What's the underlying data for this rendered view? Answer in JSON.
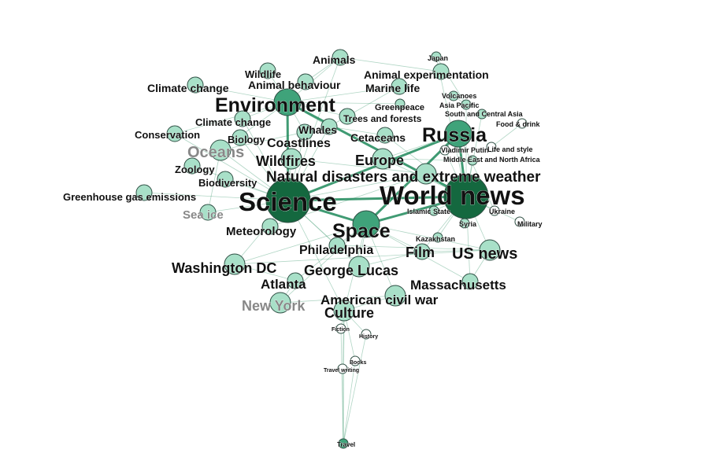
{
  "graph": {
    "colors": {
      "edge": "#1f8a5a",
      "node_light": "#a8e0c8",
      "node_mid": "#3fa37a",
      "node_dark": "#14683f",
      "node_stroke": "#2f4f44",
      "label": "#111111",
      "label_faded": "#888888"
    },
    "nodes": [
      {
        "id": "worldnews",
        "label": "World news",
        "size": "xl",
        "shade": "dark"
      },
      {
        "id": "science",
        "label": "Science",
        "size": "xl",
        "shade": "dark"
      },
      {
        "id": "environment",
        "label": "Environment",
        "size": "l",
        "shade": "mid"
      },
      {
        "id": "russia",
        "label": "Russia",
        "size": "l",
        "shade": "mid"
      },
      {
        "id": "space",
        "label": "Space",
        "size": "l",
        "shade": "mid"
      },
      {
        "id": "usnews",
        "label": "US news",
        "size": "m",
        "shade": "light"
      },
      {
        "id": "natdis",
        "label": "Natural disasters and extreme weather",
        "size": "m",
        "shade": "light"
      },
      {
        "id": "oceans",
        "label": "Oceans",
        "size": "m",
        "shade": "light"
      },
      {
        "id": "washington",
        "label": "Washington DC",
        "size": "m",
        "shade": "light"
      },
      {
        "id": "europe",
        "label": "Europe",
        "size": "m",
        "shade": "light"
      },
      {
        "id": "wildfires",
        "label": "Wildfires",
        "size": "m",
        "shade": "light"
      },
      {
        "id": "coastlines",
        "label": "Coastlines",
        "size": "s",
        "shade": "light"
      },
      {
        "id": "philadelphia",
        "label": "Philadelphia",
        "size": "s",
        "shade": "light"
      },
      {
        "id": "georgelucas",
        "label": "George Lucas",
        "size": "m",
        "shade": "light"
      },
      {
        "id": "film",
        "label": "Film",
        "size": "s",
        "shade": "light"
      },
      {
        "id": "atlanta",
        "label": "Atlanta",
        "size": "s",
        "shade": "light"
      },
      {
        "id": "massachusetts",
        "label": "Massachusetts",
        "size": "s",
        "shade": "light"
      },
      {
        "id": "newyork",
        "label": "New York",
        "size": "m",
        "shade": "light"
      },
      {
        "id": "acw",
        "label": "American civil war",
        "size": "m",
        "shade": "light"
      },
      {
        "id": "culture",
        "label": "Culture",
        "size": "m",
        "shade": "light"
      },
      {
        "id": "meteorology",
        "label": "Meteorology",
        "size": "s",
        "shade": "light"
      },
      {
        "id": "seaice",
        "label": "Sea ice",
        "size": "s",
        "shade": "light"
      },
      {
        "id": "ghg",
        "label": "Greenhouse gas emissions",
        "size": "s",
        "shade": "light"
      },
      {
        "id": "biodiversity",
        "label": "Biodiversity",
        "size": "s",
        "shade": "light"
      },
      {
        "id": "zoology",
        "label": "Zoology",
        "size": "s",
        "shade": "light"
      },
      {
        "id": "conservation",
        "label": "Conservation",
        "size": "s",
        "shade": "light"
      },
      {
        "id": "biology",
        "label": "Biology",
        "size": "s",
        "shade": "light"
      },
      {
        "id": "climatechange1",
        "label": "Climate change",
        "size": "s",
        "shade": "light"
      },
      {
        "id": "climatechange2",
        "label": "Climate change",
        "size": "s",
        "shade": "light"
      },
      {
        "id": "wildlife",
        "label": "Wildlife",
        "size": "s",
        "shade": "light"
      },
      {
        "id": "animals",
        "label": "Animals",
        "size": "s",
        "shade": "light"
      },
      {
        "id": "animalbehaviour",
        "label": "Animal behaviour",
        "size": "s",
        "shade": "light"
      },
      {
        "id": "animalexp",
        "label": "Animal experimentation",
        "size": "s",
        "shade": "light"
      },
      {
        "id": "marinelife",
        "label": "Marine life",
        "size": "s",
        "shade": "light"
      },
      {
        "id": "whales",
        "label": "Whales",
        "size": "s",
        "shade": "light"
      },
      {
        "id": "cetaceans",
        "label": "Cetaceans",
        "size": "s",
        "shade": "light"
      },
      {
        "id": "trees",
        "label": "Trees and forests",
        "size": "s",
        "shade": "light"
      },
      {
        "id": "greenpeace",
        "label": "Greenpeace",
        "size": "xs",
        "shade": "light"
      },
      {
        "id": "japan",
        "label": "Japan",
        "size": "xs",
        "shade": "light"
      },
      {
        "id": "volcanoes",
        "label": "Volcanoes",
        "size": "xs",
        "shade": "light"
      },
      {
        "id": "asiapacific",
        "label": "Asia Pacific",
        "size": "xs",
        "shade": "light"
      },
      {
        "id": "southcentralasia",
        "label": "South and Central Asia",
        "size": "xs",
        "shade": "light"
      },
      {
        "id": "fooddrink",
        "label": "Food & drink",
        "size": "xs",
        "shade": "white"
      },
      {
        "id": "vladimir",
        "label": "Vladimir Putin",
        "size": "xs",
        "shade": "white"
      },
      {
        "id": "middleeast",
        "label": "Middle East and North Africa",
        "size": "xs",
        "shade": "light"
      },
      {
        "id": "lifestyle",
        "label": "Life and style",
        "size": "xs",
        "shade": "white"
      },
      {
        "id": "islamicstate",
        "label": "Islamic State",
        "size": "xs",
        "shade": "light"
      },
      {
        "id": "syria",
        "label": "Syria",
        "size": "xs",
        "shade": "light"
      },
      {
        "id": "ukraine",
        "label": "Ukraine",
        "size": "xs",
        "shade": "white"
      },
      {
        "id": "military",
        "label": "Military",
        "size": "xs",
        "shade": "white"
      },
      {
        "id": "kazakhstan",
        "label": "Kazakhstan",
        "size": "xs",
        "shade": "light"
      },
      {
        "id": "fiction",
        "label": "Fiction",
        "size": "xs",
        "shade": "white"
      },
      {
        "id": "history",
        "label": "History",
        "size": "xs",
        "shade": "white"
      },
      {
        "id": "books",
        "label": "Books",
        "size": "xs",
        "shade": "white"
      },
      {
        "id": "travelwriting",
        "label": "Travel writing",
        "size": "xs",
        "shade": "white"
      },
      {
        "id": "travel",
        "label": "Travel",
        "size": "xs",
        "shade": "mid"
      }
    ],
    "texts": [
      {
        "id": "t_worldnews",
        "text": "World news"
      },
      {
        "id": "t_science",
        "text": "Science"
      },
      {
        "id": "t_environment",
        "text": "Environment"
      },
      {
        "id": "t_russia",
        "text": "Russia"
      },
      {
        "id": "t_space",
        "text": "Space"
      },
      {
        "id": "t_usnews",
        "text": "US news"
      },
      {
        "id": "t_natdis",
        "text": "Natural disasters and extreme weather"
      },
      {
        "id": "t_oceans",
        "text": "Oceans"
      },
      {
        "id": "t_washington",
        "text": "Washington DC"
      },
      {
        "id": "t_europe",
        "text": "Europe"
      },
      {
        "id": "t_wildfires",
        "text": "Wildfires"
      },
      {
        "id": "t_coastlines",
        "text": "Coastlines"
      },
      {
        "id": "t_philadelphia",
        "text": "Philadelphia"
      },
      {
        "id": "t_georgelucas",
        "text": "George Lucas"
      },
      {
        "id": "t_film",
        "text": "Film"
      },
      {
        "id": "t_atlanta",
        "text": "Atlanta"
      },
      {
        "id": "t_massachusetts",
        "text": "Massachusetts"
      },
      {
        "id": "t_newyork",
        "text": "New York"
      },
      {
        "id": "t_acw",
        "text": "American civil war"
      },
      {
        "id": "t_culture",
        "text": "Culture"
      },
      {
        "id": "t_meteorology",
        "text": "Meteorology"
      },
      {
        "id": "t_seaice",
        "text": "Sea ice"
      },
      {
        "id": "t_ghg",
        "text": "Greenhouse gas emissions"
      },
      {
        "id": "t_biodiversity",
        "text": "Biodiversity"
      },
      {
        "id": "t_zoology",
        "text": "Zoology"
      },
      {
        "id": "t_conservation",
        "text": "Conservation"
      },
      {
        "id": "t_biology",
        "text": "Biology"
      },
      {
        "id": "t_climatechange1",
        "text": "Climate change"
      },
      {
        "id": "t_climatechange2",
        "text": "Climate change"
      },
      {
        "id": "t_wildlife",
        "text": "Wildlife"
      },
      {
        "id": "t_animals",
        "text": "Animals"
      },
      {
        "id": "t_animalbehaviour",
        "text": "Animal behaviour"
      },
      {
        "id": "t_animalexp",
        "text": "Animal experimentation"
      },
      {
        "id": "t_marinelife",
        "text": "Marine life"
      },
      {
        "id": "t_whales",
        "text": "Whales"
      },
      {
        "id": "t_cetaceans",
        "text": "Cetaceans"
      },
      {
        "id": "t_trees",
        "text": "Trees and forests"
      },
      {
        "id": "t_greenpeace",
        "text": "Greenpeace"
      },
      {
        "id": "t_japan",
        "text": "Japan"
      },
      {
        "id": "t_volcanoes",
        "text": "Volcanoes"
      },
      {
        "id": "t_asiapacific",
        "text": "Asia Pacific"
      },
      {
        "id": "t_southcentralasia",
        "text": "South and Central Asia"
      },
      {
        "id": "t_fooddrink",
        "text": "Food & drink"
      },
      {
        "id": "t_vladimir",
        "text": "Vladimir Putin"
      },
      {
        "id": "t_middleeast",
        "text": "Middle East and North Africa"
      },
      {
        "id": "t_lifestyle",
        "text": "Life and style"
      },
      {
        "id": "t_islamicstate",
        "text": "Islamic State"
      },
      {
        "id": "t_syria",
        "text": "Syria"
      },
      {
        "id": "t_ukraine",
        "text": "Ukraine"
      },
      {
        "id": "t_military",
        "text": "Military"
      },
      {
        "id": "t_kazakhstan",
        "text": "Kazakhstan"
      },
      {
        "id": "t_fiction",
        "text": "Fiction"
      },
      {
        "id": "t_history",
        "text": "History"
      },
      {
        "id": "t_books",
        "text": "Books"
      },
      {
        "id": "t_travelwriting",
        "text": "Travel writing"
      },
      {
        "id": "t_travel",
        "text": "Travel"
      }
    ],
    "edges": [
      [
        "worldnews",
        "science"
      ],
      [
        "worldnews",
        "russia"
      ],
      [
        "worldnews",
        "space"
      ],
      [
        "worldnews",
        "usnews"
      ],
      [
        "worldnews",
        "europe"
      ],
      [
        "worldnews",
        "natdis"
      ],
      [
        "worldnews",
        "environment"
      ],
      [
        "worldnews",
        "middleeast"
      ],
      [
        "worldnews",
        "syria"
      ],
      [
        "worldnews",
        "ukraine"
      ],
      [
        "worldnews",
        "military"
      ],
      [
        "worldnews",
        "kazakhstan"
      ],
      [
        "worldnews",
        "islamicstate"
      ],
      [
        "worldnews",
        "vladimir"
      ],
      [
        "worldnews",
        "asiapacific"
      ],
      [
        "worldnews",
        "southcentralasia"
      ],
      [
        "worldnews",
        "japan"
      ],
      [
        "worldnews",
        "film"
      ],
      [
        "worldnews",
        "massachusetts"
      ],
      [
        "worldnews",
        "cetaceans"
      ],
      [
        "russia",
        "science"
      ],
      [
        "russia",
        "space"
      ],
      [
        "russia",
        "europe"
      ],
      [
        "russia",
        "vladimir"
      ],
      [
        "russia",
        "ukraine"
      ],
      [
        "science",
        "space"
      ],
      [
        "science",
        "environment"
      ],
      [
        "science",
        "oceans"
      ],
      [
        "science",
        "natdis"
      ],
      [
        "science",
        "wildfires"
      ],
      [
        "science",
        "coastlines"
      ],
      [
        "science",
        "meteorology"
      ],
      [
        "science",
        "seaice"
      ],
      [
        "science",
        "biodiversity"
      ],
      [
        "science",
        "zoology"
      ],
      [
        "science",
        "biology"
      ],
      [
        "science",
        "animals"
      ],
      [
        "science",
        "washington"
      ],
      [
        "science",
        "philadelphia"
      ],
      [
        "science",
        "georgelucas"
      ],
      [
        "science",
        "culture"
      ],
      [
        "science",
        "ghg"
      ],
      [
        "science",
        "whales"
      ],
      [
        "science",
        "conservation"
      ],
      [
        "science",
        "climatechange2"
      ],
      [
        "environment",
        "oceans"
      ],
      [
        "environment",
        "wildlife"
      ],
      [
        "environment",
        "animals"
      ],
      [
        "environment",
        "climatechange1"
      ],
      [
        "environment",
        "climatechange2"
      ],
      [
        "environment",
        "conservation"
      ],
      [
        "environment",
        "marinelife"
      ],
      [
        "environment",
        "whales"
      ],
      [
        "environment",
        "greenpeace"
      ],
      [
        "environment",
        "trees"
      ],
      [
        "environment",
        "coastlines"
      ],
      [
        "space",
        "georgelucas"
      ],
      [
        "space",
        "philadelphia"
      ],
      [
        "space",
        "film"
      ],
      [
        "space",
        "culture"
      ],
      [
        "space",
        "acw"
      ],
      [
        "space",
        "washington"
      ],
      [
        "space",
        "atlanta"
      ],
      [
        "space",
        "newyork"
      ],
      [
        "space",
        "usnews"
      ],
      [
        "space",
        "massachusetts"
      ],
      [
        "usnews",
        "washington"
      ],
      [
        "usnews",
        "philadelphia"
      ],
      [
        "usnews",
        "massachusetts"
      ],
      [
        "usnews",
        "film"
      ],
      [
        "culture",
        "fiction"
      ],
      [
        "culture",
        "history"
      ],
      [
        "culture",
        "books"
      ],
      [
        "culture",
        "travelwriting"
      ],
      [
        "culture",
        "travel"
      ],
      [
        "fiction",
        "travel"
      ],
      [
        "books",
        "travel"
      ],
      [
        "travelwriting",
        "travel"
      ],
      [
        "history",
        "travel"
      ],
      [
        "animals",
        "animalbehaviour"
      ],
      [
        "animals",
        "animalexp"
      ],
      [
        "marinelife",
        "whales"
      ],
      [
        "whales",
        "cetaceans"
      ],
      [
        "oceans",
        "coastlines"
      ],
      [
        "oceans",
        "seaice"
      ],
      [
        "natdis",
        "wildfires"
      ],
      [
        "natdis",
        "meteorology"
      ],
      [
        "europe",
        "middleeast"
      ],
      [
        "asiapacific",
        "japan"
      ],
      [
        "asiapacific",
        "volcanoes"
      ],
      [
        "fooddrink",
        "lifestyle"
      ],
      [
        "georgelucas",
        "film"
      ],
      [
        "washington",
        "atlanta"
      ],
      [
        "atlanta",
        "newyork"
      ],
      [
        "newyork",
        "acw"
      ],
      [
        "acw",
        "culture"
      ]
    ]
  }
}
